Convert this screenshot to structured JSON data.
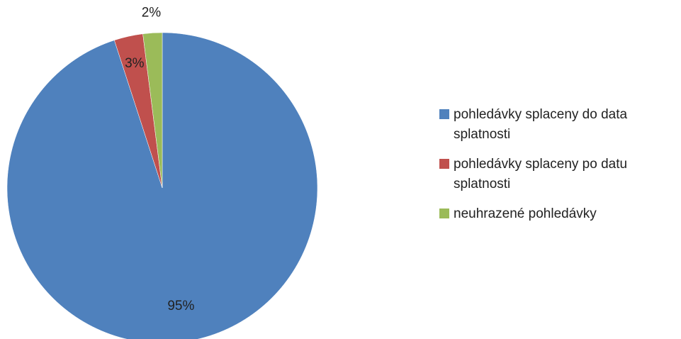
{
  "chart_data": {
    "type": "pie",
    "title": "",
    "categories": [
      "pohledávky splaceny do data splatnosti",
      "pohledávky splaceny po datu splatnosti",
      "neuhrazené pohledávky"
    ],
    "values": [
      95,
      3,
      2
    ],
    "data_labels": [
      "95%",
      "3%",
      "2%"
    ],
    "colors": [
      "#4f81bd",
      "#c0504d",
      "#9bbb59"
    ],
    "start_angle_deg": 0,
    "direction": "clockwise",
    "legend_position": "right"
  }
}
